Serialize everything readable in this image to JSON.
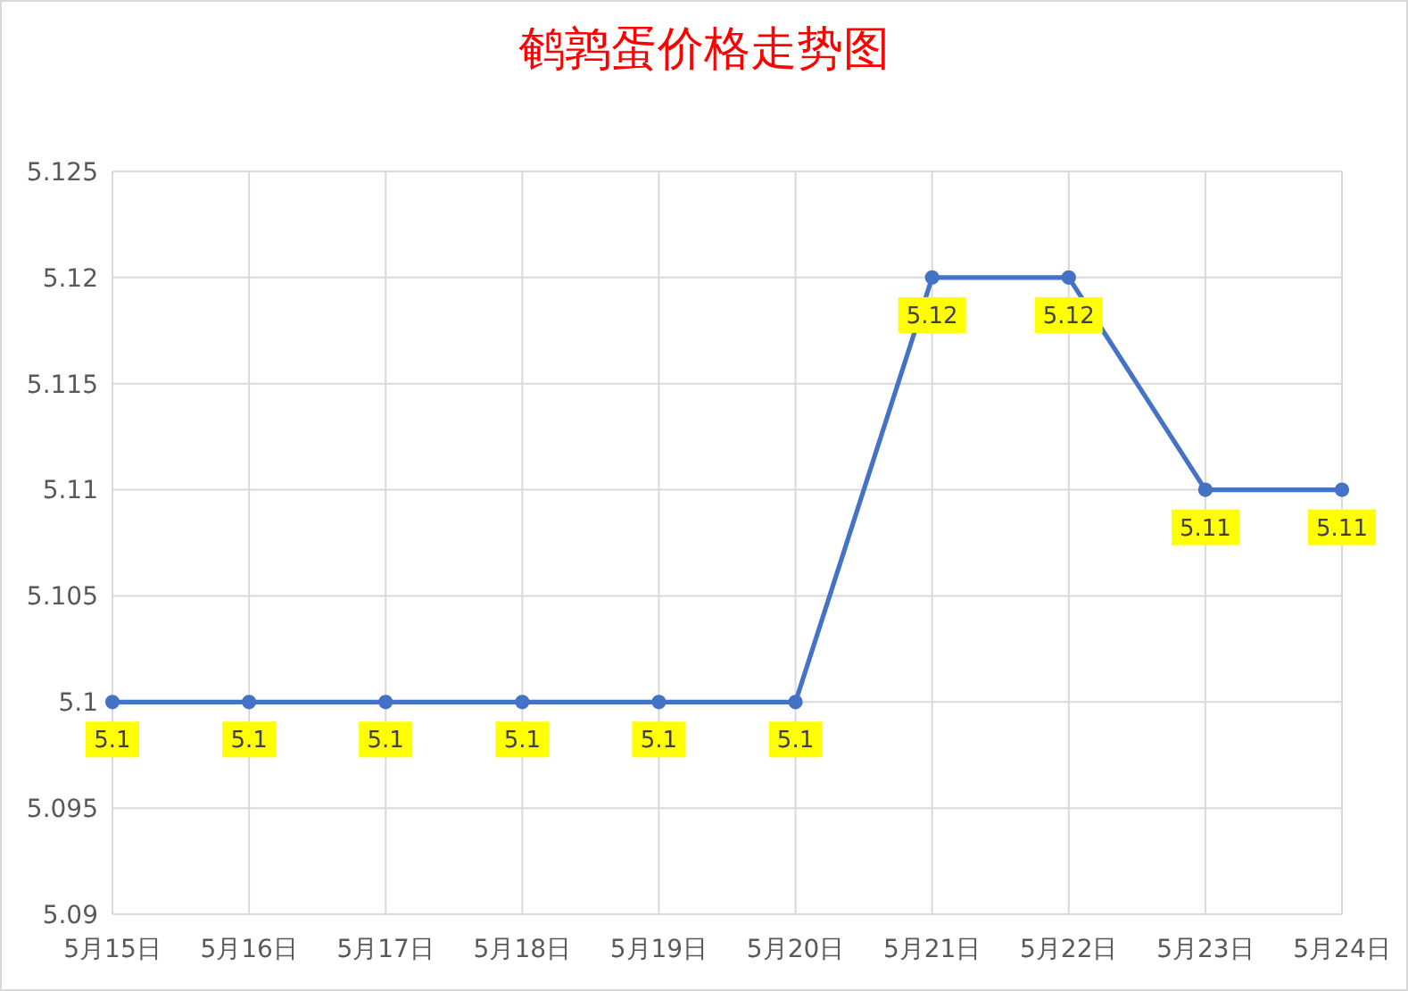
{
  "chart_data": {
    "type": "line",
    "title": "鹌鹑蛋价格走势图",
    "categories": [
      "5月15日",
      "5月16日",
      "5月17日",
      "5月18日",
      "5月19日",
      "5月20日",
      "5月21日",
      "5月22日",
      "5月23日",
      "5月24日"
    ],
    "series": [
      {
        "color": "#4472c4",
        "values": [
          5.1,
          5.1,
          5.1,
          5.1,
          5.1,
          5.1,
          5.12,
          5.12,
          5.11,
          5.11
        ]
      }
    ],
    "ylim": [
      5.09,
      5.125
    ],
    "yticks": [
      5.09,
      5.095,
      5.1,
      5.105,
      5.11,
      5.115,
      5.12,
      5.125
    ],
    "grid": true,
    "marker": "circle",
    "line_style": "solid",
    "data_labels": true
  }
}
